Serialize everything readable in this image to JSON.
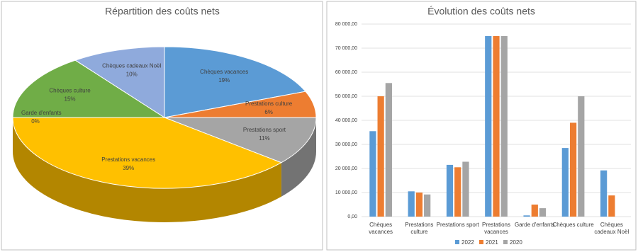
{
  "chart_data": [
    {
      "type": "pie3d",
      "title": "Répartition des coûts nets",
      "categories": [
        "Chèques vacances",
        "Prestations culture",
        "Prestations sport",
        "Prestations vacances",
        "Garde d'enfants",
        "Chèques culture",
        "Chèques cadeaux Noël"
      ],
      "values": [
        19,
        6,
        11,
        39,
        0,
        15,
        10
      ],
      "value_labels": [
        "19%",
        "6%",
        "11%",
        "39%",
        "0%",
        "15%",
        "10%"
      ],
      "colors": [
        "#5b9bd5",
        "#ed7d31",
        "#a5a5a5",
        "#ffc000",
        "#4472c4",
        "#70ad47",
        "#8faadc"
      ]
    },
    {
      "type": "bar",
      "title": "Évolution des coûts nets",
      "categories": [
        "Chèques vacances",
        "Prestations culture",
        "Prestations sport",
        "Prestations vacances",
        "Garde d'enfants",
        "Chèques culture",
        "Chèques cadeaux Noël"
      ],
      "series": [
        {
          "name": "2022",
          "color": "#5b9bd5",
          "values": [
            35500,
            10500,
            21500,
            75000,
            500,
            28500,
            19200
          ]
        },
        {
          "name": "2021",
          "color": "#ed7d31",
          "values": [
            50000,
            10000,
            20500,
            75000,
            5000,
            39000,
            8800
          ]
        },
        {
          "name": "2020",
          "color": "#a5a5a5",
          "values": [
            55500,
            9200,
            22800,
            75000,
            3500,
            50000,
            0
          ]
        }
      ],
      "ylim": [
        0,
        80000
      ],
      "yticks": [
        {
          "value": 0,
          "label": "0,00"
        },
        {
          "value": 10000,
          "label": "10 000,00"
        },
        {
          "value": 20000,
          "label": "20 000,00"
        },
        {
          "value": 30000,
          "label": "30 000,00"
        },
        {
          "value": 40000,
          "label": "40 000,00"
        },
        {
          "value": 50000,
          "label": "50 000,00"
        },
        {
          "value": 60000,
          "label": "60 000,00"
        },
        {
          "value": 70000,
          "label": "70 000,00"
        },
        {
          "value": 80000,
          "label": "80 000,00"
        }
      ],
      "grid": true,
      "legend": "bottom"
    }
  ]
}
